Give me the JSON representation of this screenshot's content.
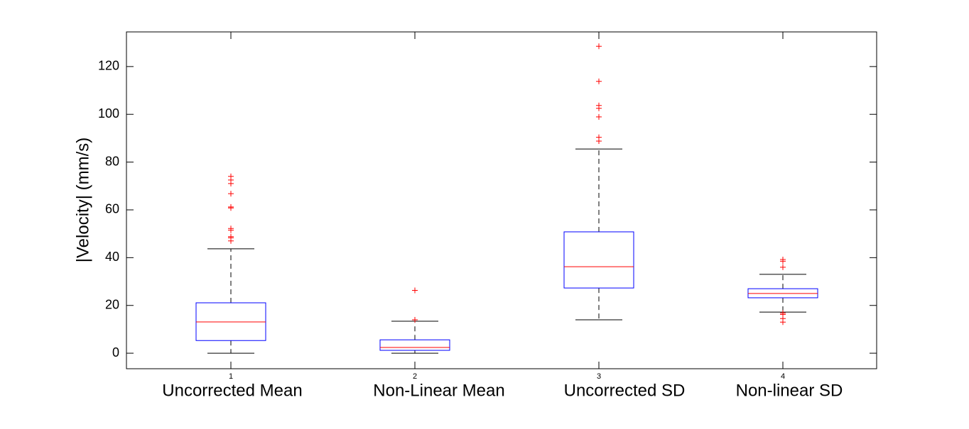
{
  "chart_data": {
    "type": "box",
    "ylabel": "|Velocity| (mm/s)",
    "categories": [
      "1",
      "2",
      "3",
      "4"
    ],
    "group_labels": [
      "Uncorrected Mean",
      "Non-Linear Mean",
      "Uncorrected SD",
      "Non-linear SD"
    ],
    "ylim": [
      -6.5,
      134.5
    ],
    "yticks": [
      0,
      20,
      40,
      60,
      80,
      100,
      120
    ],
    "box_color": "#0000ff",
    "median_color": "#ff0000",
    "whisker_color": "#000000",
    "outlier_color": "#ff0000",
    "boxes": [
      {
        "min": 0,
        "q1": 5.3,
        "median": 13.1,
        "q3": 21.1,
        "max": 43.7,
        "outliers": [
          74.0,
          72.5,
          71.0,
          66.8,
          61.2,
          60.8,
          52.2,
          51.5,
          48.8,
          48.3,
          47.0
        ]
      },
      {
        "min": 0,
        "q1": 1.2,
        "median": 2.4,
        "q3": 5.6,
        "max": 13.4,
        "outliers": [
          26.3,
          14.0
        ]
      },
      {
        "min": 14.0,
        "q1": 27.3,
        "median": 36.2,
        "q3": 50.8,
        "max": 85.5,
        "outliers": [
          128.5,
          113.8,
          103.7,
          102.5,
          98.9,
          90.4,
          88.8
        ]
      },
      {
        "min": 17.2,
        "q1": 23.2,
        "median": 25.0,
        "q3": 27.0,
        "max": 33.0,
        "outliers": [
          39.2,
          38.5,
          36.0,
          16.8,
          16.2,
          14.5,
          13.0
        ]
      }
    ]
  }
}
